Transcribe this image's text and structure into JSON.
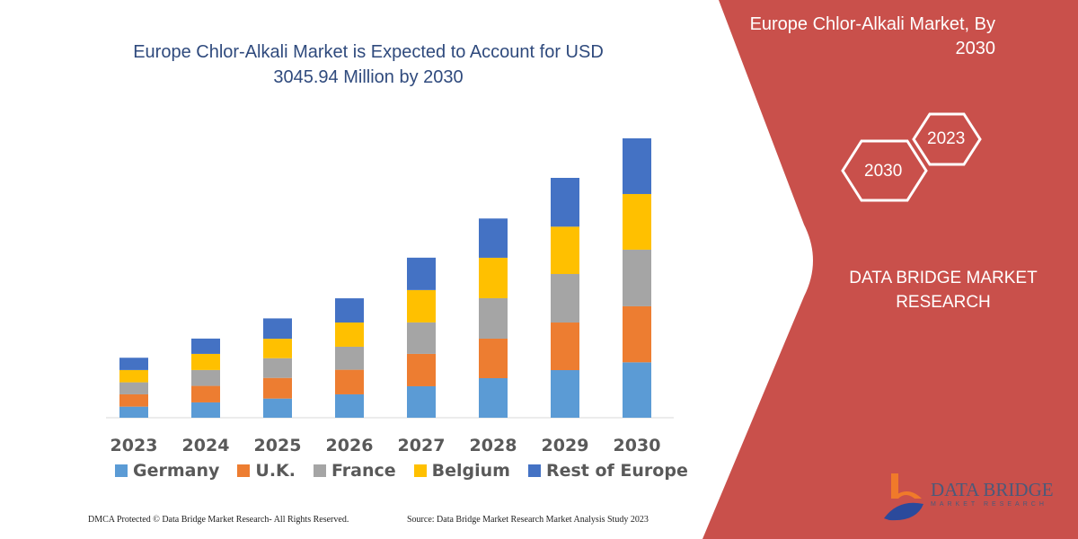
{
  "header": {
    "title": "Europe Chlor-Alkali Market is Expected to Account for USD 3045.94 Million by 2030"
  },
  "side_panel": {
    "title": "Europe Chlor-Alkali Market, By 2030",
    "hex_years": [
      "2030",
      "2023"
    ],
    "brand": "DATA BRIDGE MARKET RESEARCH",
    "logo_text": "DATA BRIDGE",
    "logo_sub": "MARKET RESEARCH",
    "panel_color": "#c9504b"
  },
  "footer": {
    "left": "DMCA Protected © Data Bridge Market Research-  All Rights Reserved.",
    "right": "Source: Data Bridge Market Research  Market Analysis Study 2023"
  },
  "chart_data": {
    "type": "bar",
    "stacked": true,
    "title": "Europe Chlor-Alkali Market is Expected to Account for USD 3045.94 Million by 2030",
    "xlabel": "",
    "ylabel": "",
    "ylim": [
      0,
      3100
    ],
    "grid": false,
    "legend_position": "bottom",
    "categories": [
      "2023",
      "2024",
      "2025",
      "2026",
      "2027",
      "2028",
      "2029",
      "2030"
    ],
    "series": [
      {
        "name": "Germany",
        "color": "#5b9bd5",
        "values": [
          121,
          167,
          209,
          255,
          343,
          431,
          519,
          604
        ]
      },
      {
        "name": "U.K.",
        "color": "#ed7d31",
        "values": [
          134,
          180,
          225,
          268,
          353,
          431,
          519,
          611
        ]
      },
      {
        "name": "France",
        "color": "#a5a5a5",
        "values": [
          131,
          173,
          215,
          251,
          343,
          441,
          529,
          617
        ]
      },
      {
        "name": "Belgium",
        "color": "#ffc000",
        "values": [
          134,
          176,
          212,
          264,
          353,
          441,
          516,
          607
        ]
      },
      {
        "name": "Rest of Europe",
        "color": "#4472c4",
        "values": [
          134,
          167,
          222,
          264,
          353,
          428,
          532,
          607
        ]
      }
    ]
  }
}
